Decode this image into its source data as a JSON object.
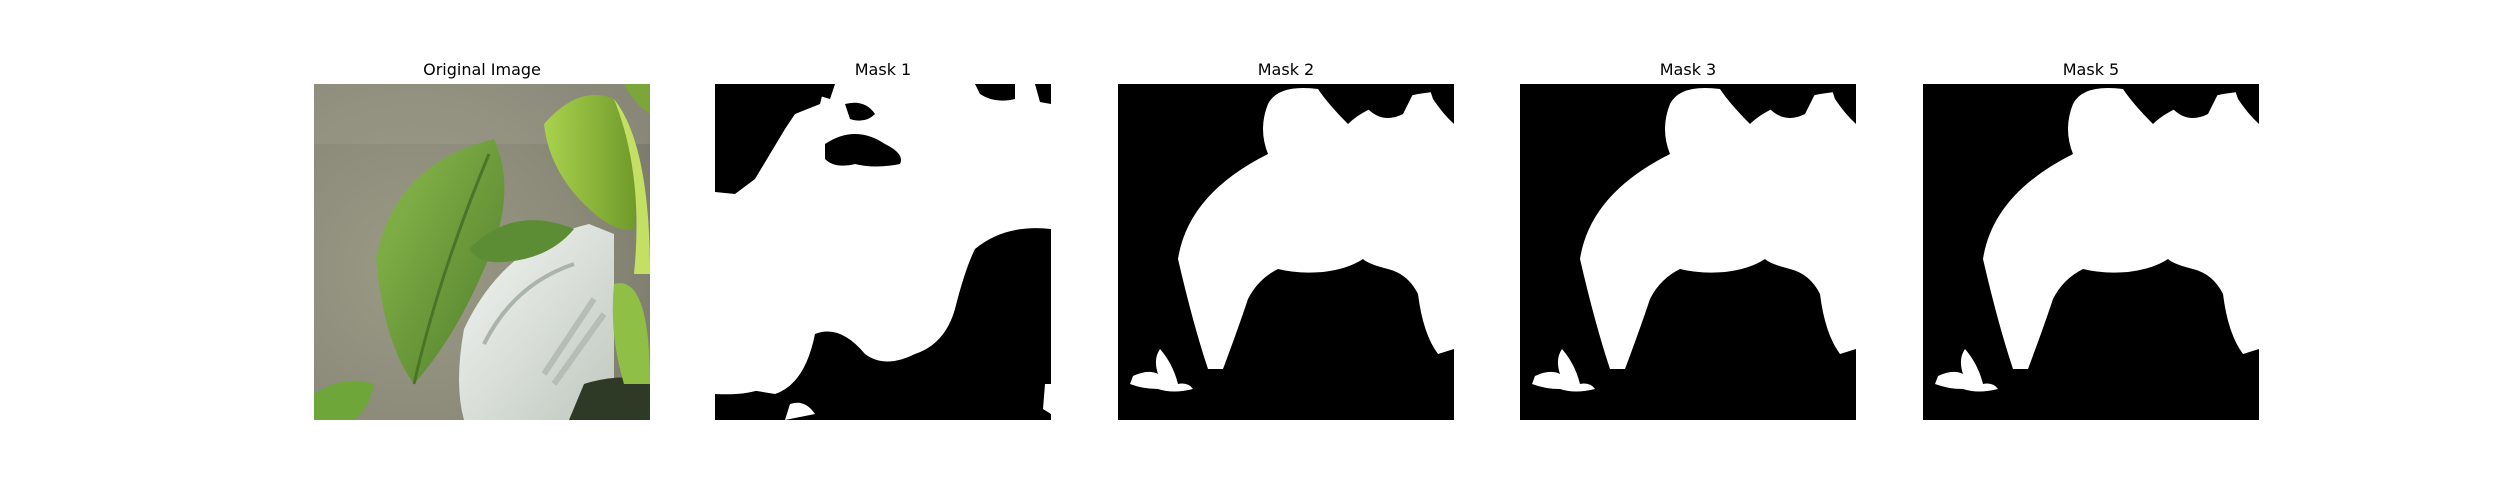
{
  "figure": {
    "panels": [
      {
        "title": "Original Image",
        "content": "photo"
      },
      {
        "title": "Mask 1",
        "content": "mask"
      },
      {
        "title": "Mask 2",
        "content": "mask"
      },
      {
        "title": "Mask 3",
        "content": "mask"
      },
      {
        "title": "Mask 5",
        "content": "mask"
      }
    ],
    "colors": {
      "mask_background": "#000000",
      "mask_foreground": "#ffffff",
      "leaf_green": "#6f9a3c",
      "pot_white": "#e6ebe6"
    }
  }
}
